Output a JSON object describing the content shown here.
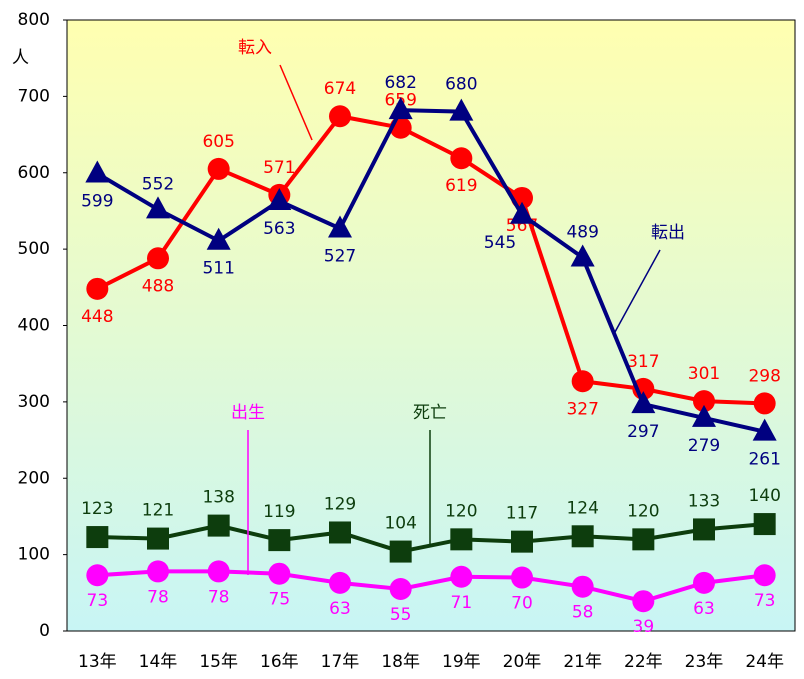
{
  "chart_data": {
    "type": "line",
    "y_label": "人",
    "categories": [
      "13年",
      "14年",
      "15年",
      "16年",
      "17年",
      "18年",
      "19年",
      "20年",
      "21年",
      "22年",
      "23年",
      "24年"
    ],
    "ylim": [
      0,
      800
    ],
    "yticks": [
      0,
      100,
      200,
      300,
      400,
      500,
      600,
      700,
      800
    ],
    "series": [
      {
        "name": "転入",
        "color": "#ff0000",
        "marker": "circle",
        "values": [
          448,
          488,
          605,
          571,
          674,
          659,
          619,
          567,
          327,
          317,
          301,
          298
        ]
      },
      {
        "name": "転出",
        "color": "#000080",
        "marker": "triangle",
        "values": [
          599,
          552,
          511,
          563,
          527,
          682,
          680,
          545,
          489,
          297,
          279,
          261
        ]
      },
      {
        "name": "死亡",
        "color": "#0d3d0d",
        "marker": "square",
        "values": [
          123,
          121,
          138,
          119,
          129,
          104,
          120,
          117,
          124,
          120,
          133,
          140
        ]
      },
      {
        "name": "出生",
        "color": "#ff00ff",
        "marker": "circle",
        "values": [
          73,
          78,
          78,
          75,
          63,
          55,
          71,
          70,
          58,
          39,
          63,
          73
        ]
      }
    ]
  }
}
